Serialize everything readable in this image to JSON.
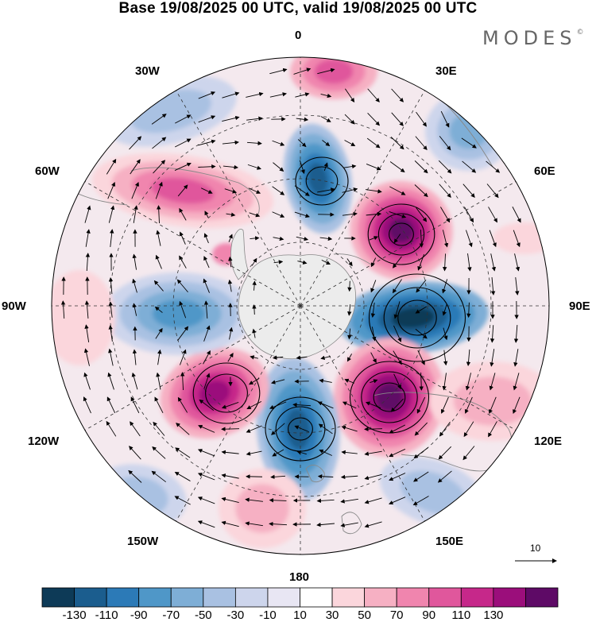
{
  "header": {
    "title": "Base 19/08/2025 00 UTC, valid 19/08/2025 00 UTC",
    "logo_text": "MODES",
    "logo_mark": "©"
  },
  "map": {
    "projection": "south polar stereographic",
    "longitude_labels": [
      "0",
      "30E",
      "60E",
      "90E",
      "120E",
      "150E",
      "180",
      "150W",
      "120W",
      "90W",
      "60W",
      "30W"
    ],
    "reference_vector_label": "10"
  },
  "colorbar": {
    "colors": [
      "#0d3a57",
      "#1b5d8e",
      "#2c7ab7",
      "#4f97c8",
      "#7eaed6",
      "#a9c1e2",
      "#cdd5ec",
      "#e8e6f3",
      "#ffffff",
      "#fbd6dc",
      "#f6b0c3",
      "#f085ae",
      "#e0579c",
      "#c6288a",
      "#9b0e7b",
      "#5e0a66"
    ],
    "tick_labels": [
      "-130",
      "-110",
      "-90",
      "-70",
      "-50",
      "-30",
      "-10",
      "10",
      "30",
      "50",
      "70",
      "90",
      "110",
      "130"
    ]
  }
}
